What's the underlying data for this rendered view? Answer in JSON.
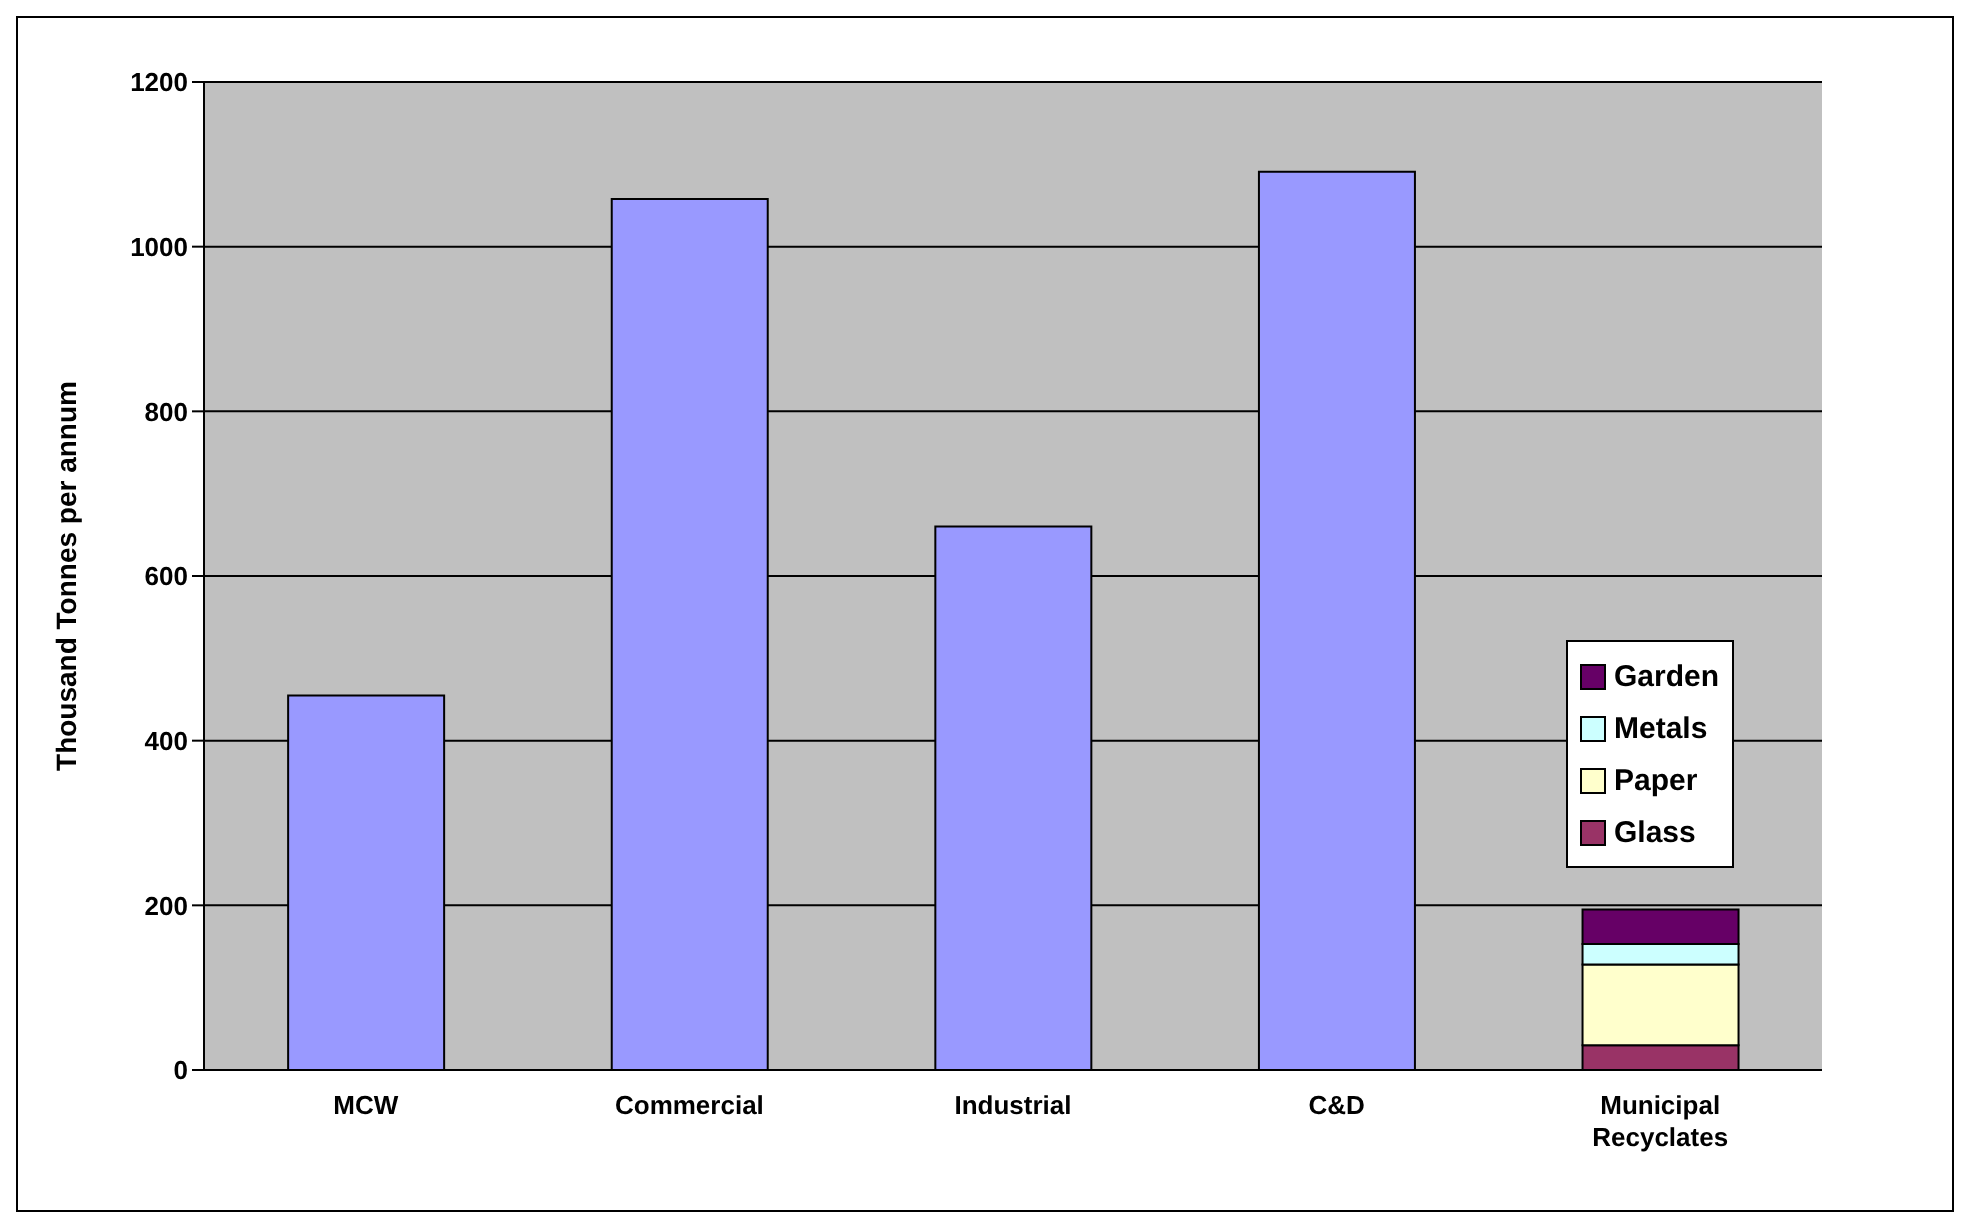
{
  "chart_data": {
    "type": "bar",
    "stacked": true,
    "ylabel": "Thousand Tonnes per annum",
    "categories": [
      "MCW",
      "Commercial",
      "Industrial",
      "C&D",
      "Municipal Recyclates"
    ],
    "series": [
      {
        "color": "#9999ff",
        "values": [
          455,
          1058,
          660,
          1091,
          null
        ]
      },
      {
        "name": "Glass",
        "color": "#993366",
        "values": [
          null,
          null,
          null,
          null,
          30
        ]
      },
      {
        "name": "Paper",
        "color": "#ffffcc",
        "values": [
          null,
          null,
          null,
          null,
          98
        ]
      },
      {
        "name": "Metals",
        "color": "#ccffff",
        "values": [
          null,
          null,
          null,
          null,
          25
        ]
      },
      {
        "name": "Garden",
        "color": "#660066",
        "values": [
          null,
          null,
          null,
          null,
          42
        ]
      }
    ],
    "ylim": [
      0,
      1200
    ],
    "yticks": [
      0,
      200,
      400,
      600,
      800,
      1000,
      1200
    ],
    "grid": "y",
    "legend": "right"
  }
}
